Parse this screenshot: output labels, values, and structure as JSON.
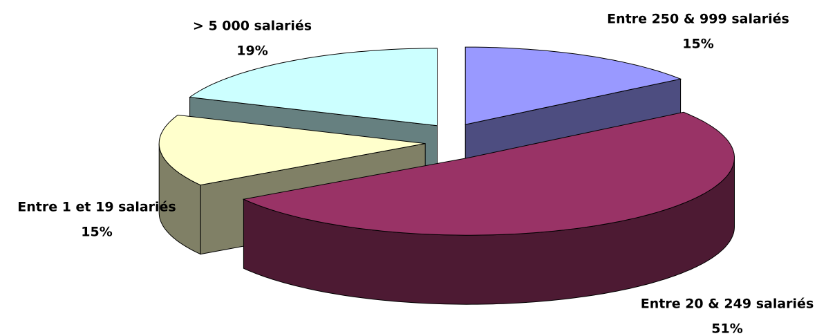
{
  "chart_data": {
    "type": "pie3d",
    "categories": [
      "Entre 250 & 999 salariés",
      "Entre 20 & 249 salariés",
      "Entre 1 et 19 salariés",
      "> 5 000 salariés"
    ],
    "values": [
      15,
      51,
      15,
      19
    ],
    "value_labels": [
      "15%",
      "51%",
      "15%",
      "19%"
    ],
    "colors": [
      "#9999ff",
      "#993366",
      "#ffffcc",
      "#ccffff"
    ],
    "side_colors": [
      "#4d4d80",
      "#4d1a33",
      "#808066",
      "#668080"
    ]
  }
}
